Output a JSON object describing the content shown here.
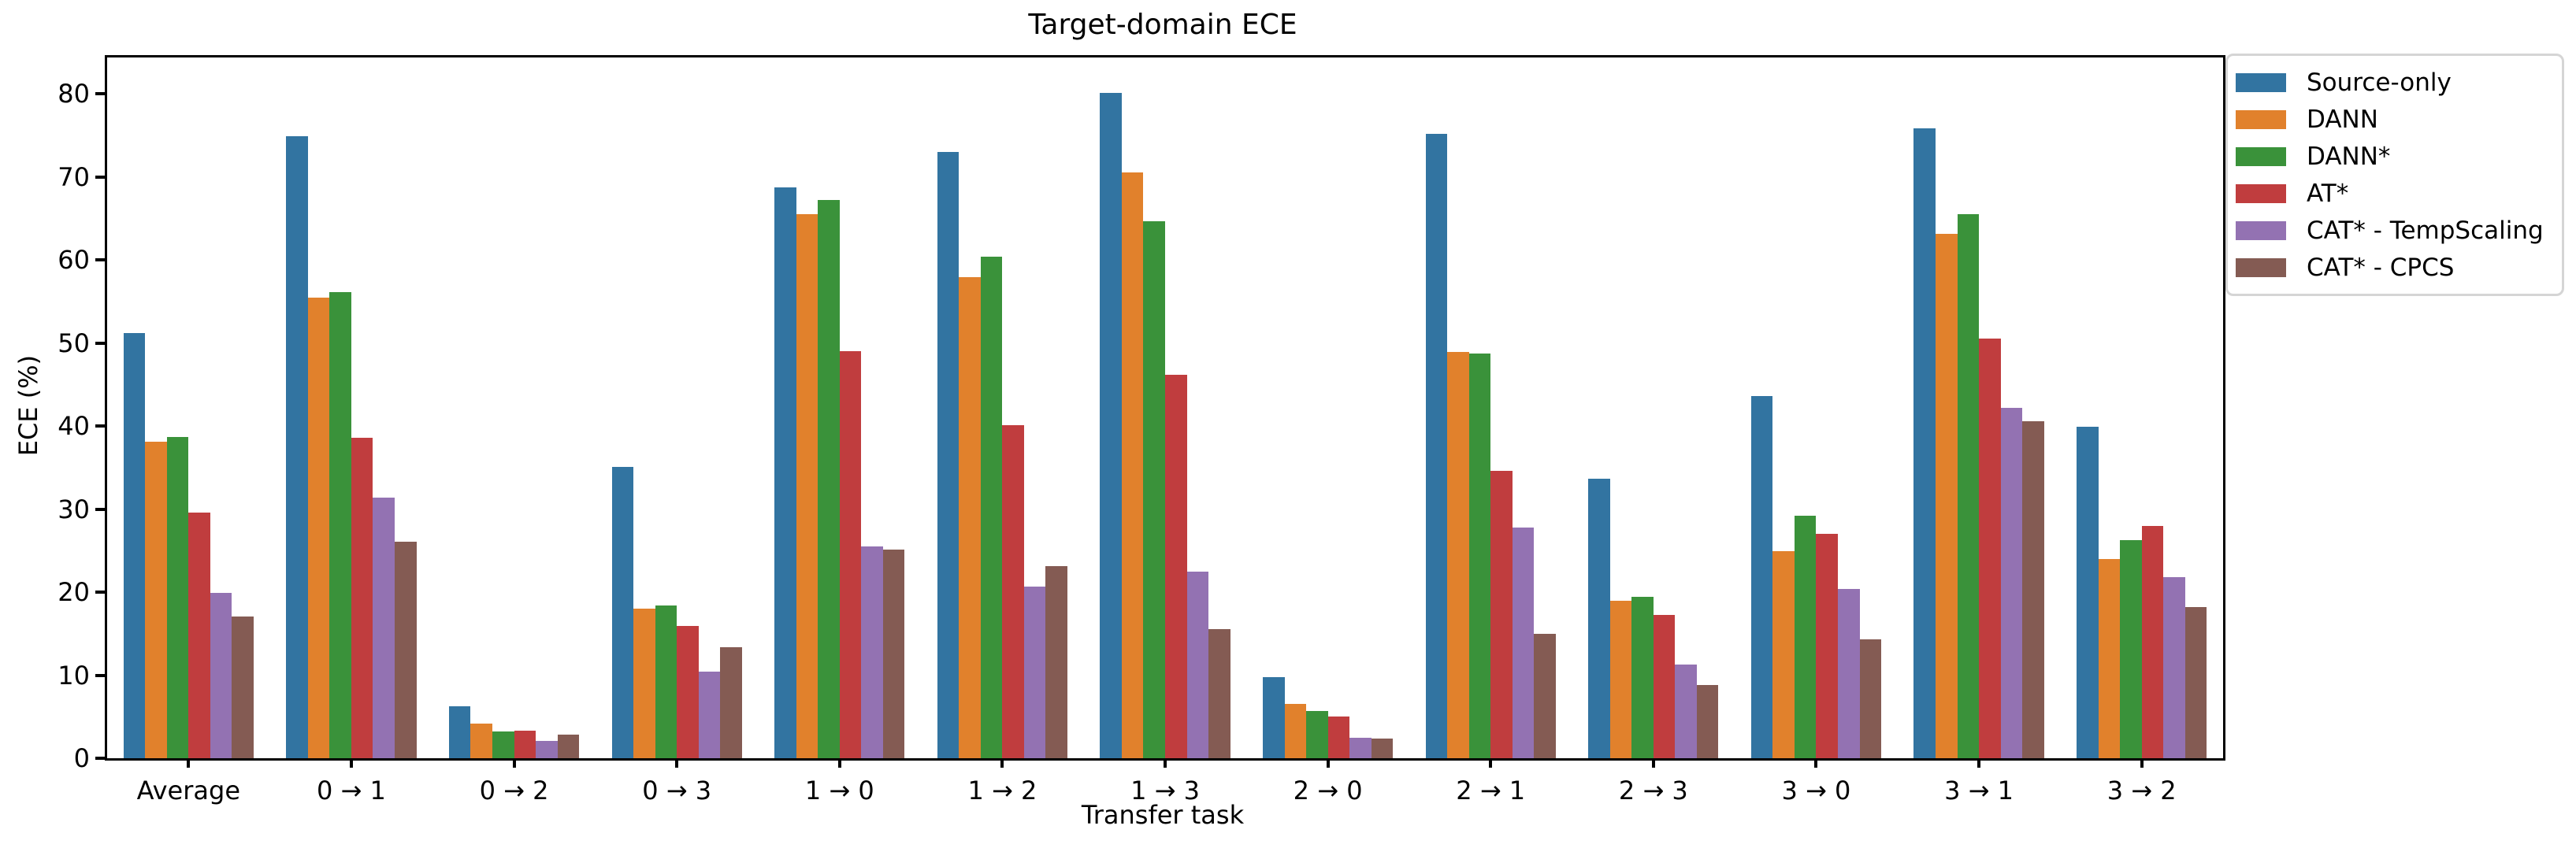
{
  "figure": {
    "title": "Target-domain ECE"
  },
  "chart_data": {
    "type": "bar",
    "title": "Target-domain ECE",
    "xlabel": "Transfer task",
    "ylabel": "ECE (%)",
    "ylim": [
      0,
      84.4
    ],
    "yticks": [
      0,
      10,
      20,
      30,
      40,
      50,
      60,
      70,
      80
    ],
    "grid": false,
    "legend_position": "outside-upper-right",
    "categories": [
      "Average",
      "0 → 1",
      "0 → 2",
      "0 → 3",
      "1 → 0",
      "1 → 2",
      "1 → 3",
      "2 → 0",
      "2 → 1",
      "2 → 3",
      "3 → 0",
      "3 → 1",
      "3 → 2"
    ],
    "series": [
      {
        "name": "Source-only",
        "color": "#3274A1",
        "values": [
          51.2,
          74.9,
          6.3,
          35.1,
          68.8,
          73.0,
          80.1,
          9.8,
          75.2,
          33.7,
          43.6,
          75.9,
          39.9
        ]
      },
      {
        "name": "DANN",
        "color": "#E1812C",
        "values": [
          38.1,
          55.5,
          4.2,
          18.0,
          65.5,
          57.9,
          70.6,
          6.5,
          48.9,
          19.0,
          24.9,
          63.2,
          24.0
        ]
      },
      {
        "name": "DANN*",
        "color": "#3A923A",
        "values": [
          38.7,
          56.1,
          3.2,
          18.4,
          67.2,
          60.4,
          64.7,
          5.7,
          48.7,
          19.4,
          29.2,
          65.5,
          26.3
        ]
      },
      {
        "name": "AT*",
        "color": "#C03D3E",
        "values": [
          29.6,
          38.6,
          3.3,
          15.9,
          49.0,
          40.1,
          46.2,
          5.0,
          34.6,
          17.3,
          27.0,
          50.5,
          28.0
        ]
      },
      {
        "name": "CAT* - TempScaling",
        "color": "#9372B2",
        "values": [
          19.9,
          31.4,
          2.1,
          10.4,
          25.5,
          20.7,
          22.5,
          2.5,
          27.8,
          11.3,
          20.4,
          42.2,
          21.8
        ]
      },
      {
        "name": "CAT* - CPCS",
        "color": "#845B53",
        "values": [
          17.1,
          26.1,
          2.8,
          13.4,
          25.1,
          23.1,
          15.6,
          2.4,
          15.0,
          8.8,
          14.3,
          40.6,
          18.2
        ]
      }
    ]
  }
}
